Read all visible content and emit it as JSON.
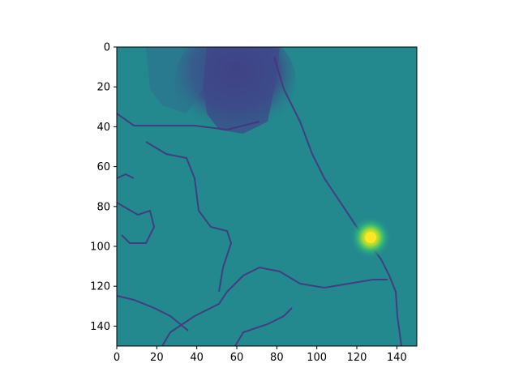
{
  "chart_data": {
    "type": "heatmap",
    "title": "",
    "xlabel": "",
    "ylabel": "",
    "xlim": [
      0,
      150
    ],
    "ylim": [
      150,
      0
    ],
    "y_axis_inverted": true,
    "x_ticks": [
      0,
      20,
      40,
      60,
      80,
      100,
      120,
      140
    ],
    "x_tick_labels": [
      "0",
      "20",
      "40",
      "60",
      "80",
      "100",
      "120",
      "140"
    ],
    "y_ticks": [
      0,
      20,
      40,
      60,
      80,
      100,
      120,
      140
    ],
    "y_tick_labels": [
      "0",
      "20",
      "40",
      "60",
      "80",
      "100",
      "120",
      "140"
    ],
    "grid": false,
    "colormap": "viridis",
    "background_value_color": "#23898e",
    "colors": {
      "low": "#440154",
      "mid_low": "#3b528b",
      "mid": "#21918c",
      "mid_high": "#5ec962",
      "high": "#fde725"
    },
    "features": [
      {
        "kind": "dark-region",
        "x": [
          45,
          80
        ],
        "y": [
          0,
          40
        ],
        "level": "low"
      },
      {
        "kind": "bright-spot",
        "x": 127,
        "y": 95,
        "level": "high"
      },
      {
        "kind": "dark-lines",
        "description": "thin dark boundary-like contours across field"
      }
    ]
  }
}
